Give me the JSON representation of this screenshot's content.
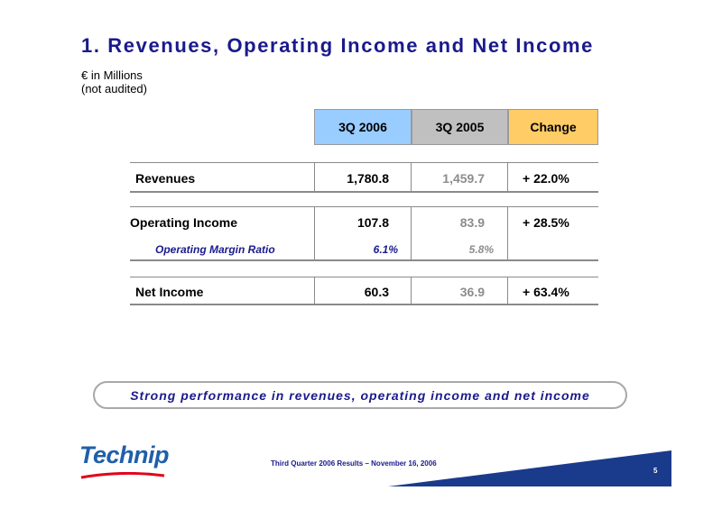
{
  "title": {
    "number": "1.",
    "text": "Revenues, Operating Income and Net Income"
  },
  "subtitle": {
    "line1": "€ in Millions",
    "line2": "(not audited)"
  },
  "columns": [
    "3Q 2006",
    "3Q 2005",
    "Change"
  ],
  "rows": {
    "revenues": {
      "label": "Revenues",
      "q2006": "1,780.8",
      "q2005": "1,459.7",
      "change": "+ 22.0%"
    },
    "operating_income": {
      "label": "Operating Income",
      "q2006": "107.8",
      "q2005": "83.9",
      "change": "+ 28.5%"
    },
    "operating_margin": {
      "label": "Operating Margin Ratio",
      "q2006": "6.1%",
      "q2005": "5.8%"
    },
    "net_income": {
      "label": "Net Income",
      "q2006": "60.3",
      "q2005": "36.9",
      "change": "+ 63.4%"
    }
  },
  "banner": "Strong performance in revenues, operating income and net income",
  "footer": "Third Quarter 2006 Results – November 16, 2006",
  "page_number": "5",
  "logo_text": "Technip",
  "colors": {
    "title": "#1a1a8c",
    "col_2006": "#99ccff",
    "col_2005": "#c0c0c0",
    "col_change": "#ffcc66",
    "footer_band": "#1a3a8c"
  }
}
